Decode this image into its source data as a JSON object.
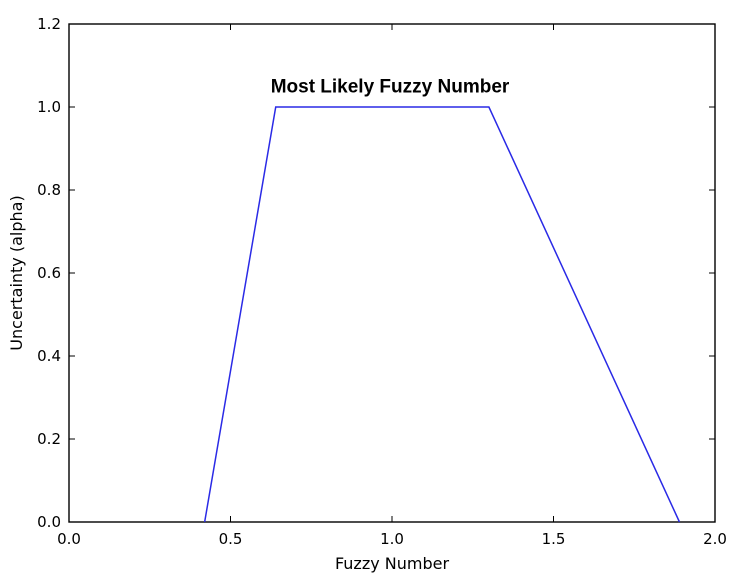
{
  "chart_data": {
    "type": "line",
    "title": "",
    "xlabel": "Fuzzy Number",
    "ylabel": "Uncertainty (alpha)",
    "xlim": [
      0.0,
      2.0
    ],
    "ylim": [
      0.0,
      1.2
    ],
    "xticks": [
      "0.0",
      "0.5",
      "1.0",
      "1.5",
      "2.0"
    ],
    "yticks": [
      "0.0",
      "0.2",
      "0.4",
      "0.6",
      "0.8",
      "1.0",
      "1.2"
    ],
    "grid": false,
    "annotation": {
      "text": "Most Likely Fuzzy Number",
      "x": 1.0,
      "y": 1.02
    },
    "series": [
      {
        "color": "#2a2ae6",
        "x": [
          0.42,
          0.64,
          1.3,
          1.89
        ],
        "y": [
          0.0,
          1.0,
          1.0,
          0.0
        ]
      }
    ]
  }
}
